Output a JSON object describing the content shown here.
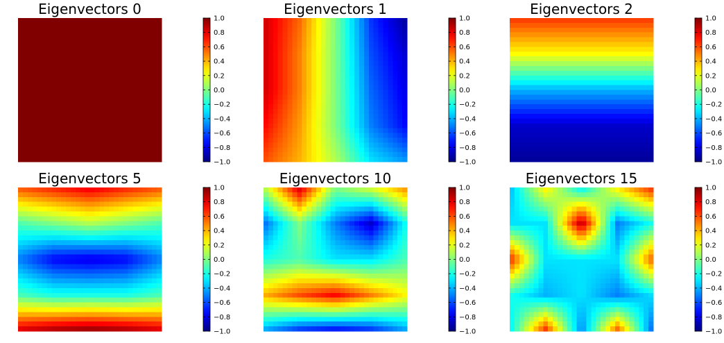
{
  "chart_data": [
    {
      "type": "heatmap",
      "title": "Eigenvectors 0",
      "colormap": "jet",
      "clim": [
        -1.0,
        1.0
      ],
      "colorbar_ticks": [
        "1.0",
        "0.8",
        "0.6",
        "0.4",
        "0.2",
        "0.0",
        "−0.2",
        "−0.4",
        "−0.6",
        "−0.8",
        "−1.0"
      ],
      "values": [
        [
          1.0,
          1.0,
          1.0,
          1.0,
          1.0
        ],
        [
          1.0,
          1.0,
          1.0,
          1.0,
          1.0
        ],
        [
          1.0,
          1.0,
          1.0,
          1.0,
          1.0
        ],
        [
          1.0,
          1.0,
          1.0,
          1.0,
          1.0
        ],
        [
          1.0,
          1.0,
          1.0,
          1.0,
          1.0
        ]
      ],
      "axes_visible": false
    },
    {
      "type": "heatmap",
      "title": "Eigenvectors 1",
      "colormap": "jet",
      "clim": [
        -1.0,
        1.0
      ],
      "colorbar_ticks": [
        "1.0",
        "0.8",
        "0.6",
        "0.4",
        "0.2",
        "0.0",
        "−0.2",
        "−0.4",
        "−0.6",
        "−0.8",
        "−1.0"
      ],
      "values": [
        [
          0.85,
          0.55,
          0.0,
          -0.65,
          -0.95
        ],
        [
          0.85,
          0.5,
          0.0,
          -0.6,
          -0.85
        ],
        [
          0.85,
          0.5,
          0.0,
          -0.55,
          -0.8
        ],
        [
          0.75,
          0.45,
          0.0,
          -0.5,
          -0.75
        ],
        [
          0.6,
          0.4,
          0.1,
          -0.3,
          -0.45
        ]
      ],
      "axes_visible": false
    },
    {
      "type": "heatmap",
      "title": "Eigenvectors 2",
      "colormap": "jet",
      "clim": [
        -1.0,
        1.0
      ],
      "colorbar_ticks": [
        "1.0",
        "0.8",
        "0.6",
        "0.4",
        "0.2",
        "0.0",
        "−0.2",
        "−0.4",
        "−0.6",
        "−0.8",
        "−1.0"
      ],
      "values": [
        [
          0.65,
          0.65,
          0.65,
          0.65,
          0.65
        ],
        [
          0.25,
          0.25,
          0.25,
          0.25,
          0.25
        ],
        [
          -0.4,
          -0.4,
          -0.4,
          -0.4,
          -0.4
        ],
        [
          -0.85,
          -0.85,
          -0.85,
          -0.85,
          -0.85
        ],
        [
          -0.95,
          -0.95,
          -0.95,
          -0.95,
          -0.95
        ]
      ],
      "axes_visible": false
    },
    {
      "type": "heatmap",
      "title": "Eigenvectors 5",
      "colormap": "jet",
      "clim": [
        -1.0,
        1.0
      ],
      "colorbar_ticks": [
        "1.0",
        "0.8",
        "0.6",
        "0.4",
        "0.2",
        "0.0",
        "−0.2",
        "−0.4",
        "−0.6",
        "−0.8",
        "−1.0"
      ],
      "values": [
        [
          0.6,
          0.7,
          0.8,
          0.7,
          0.6
        ],
        [
          -0.1,
          0.0,
          0.1,
          0.0,
          -0.1
        ],
        [
          -0.5,
          -0.75,
          -0.8,
          -0.75,
          -0.5
        ],
        [
          -0.1,
          -0.2,
          -0.2,
          -0.2,
          -0.1
        ],
        [
          0.85,
          0.95,
          1.0,
          0.95,
          0.85
        ]
      ],
      "axes_visible": false
    },
    {
      "type": "heatmap",
      "title": "Eigenvectors 10",
      "colormap": "jet",
      "clim": [
        -1.0,
        1.0
      ],
      "colorbar_ticks": [
        "1.0",
        "0.8",
        "0.6",
        "0.4",
        "0.2",
        "0.0",
        "−0.2",
        "−0.4",
        "−0.6",
        "−0.8",
        "−1.0"
      ],
      "values": [
        [
          0.1,
          0.85,
          0.0,
          0.2,
          0.5
        ],
        [
          -0.55,
          0.0,
          -0.5,
          -0.85,
          -0.2
        ],
        [
          -0.2,
          -0.1,
          -0.3,
          -0.3,
          -0.1
        ],
        [
          0.4,
          0.6,
          0.75,
          0.5,
          0.25
        ],
        [
          -0.45,
          -0.7,
          -0.8,
          -0.7,
          -0.45
        ]
      ],
      "axes_visible": false
    },
    {
      "type": "heatmap",
      "title": "Eigenvectors 15",
      "colormap": "jet",
      "clim": [
        -1.0,
        1.0
      ],
      "colorbar_ticks": [
        "1.0",
        "0.8",
        "0.6",
        "0.4",
        "0.2",
        "0.0",
        "−0.2",
        "−0.4",
        "−0.6",
        "−0.8",
        "−1.0"
      ],
      "values": [
        [
          -0.4,
          0.3,
          -0.3,
          0.3,
          0.7
        ],
        [
          -0.3,
          -0.3,
          0.9,
          -0.5,
          -0.2
        ],
        [
          0.7,
          -0.3,
          -0.3,
          -0.3,
          0.6
        ],
        [
          -0.2,
          -0.4,
          -0.3,
          -0.5,
          -0.3
        ],
        [
          -0.3,
          0.7,
          -0.5,
          0.6,
          -0.6
        ]
      ],
      "axes_visible": false
    }
  ]
}
